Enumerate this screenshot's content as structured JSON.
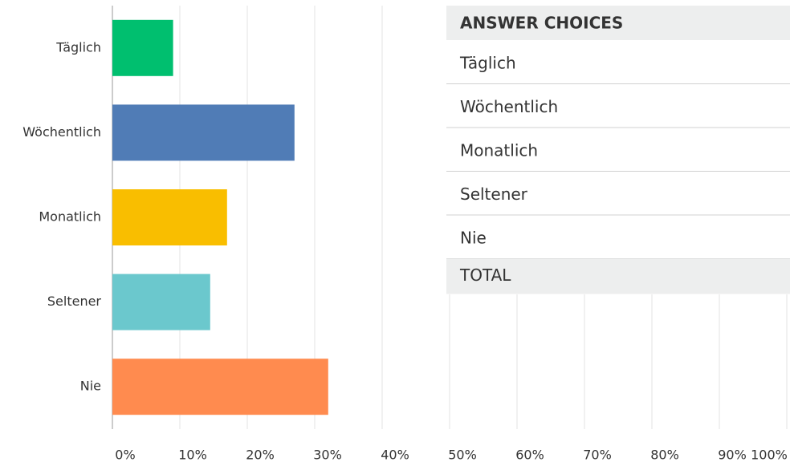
{
  "chart_data": {
    "type": "bar",
    "orientation": "horizontal",
    "categories": [
      "Täglich",
      "Wöchentlich",
      "Monatlich",
      "Seltener",
      "Nie"
    ],
    "values": [
      9,
      27,
      17,
      14.5,
      32
    ],
    "colors": [
      "#00bf6f",
      "#507cb6",
      "#f9be00",
      "#6bc8cd",
      "#ff8b4f"
    ],
    "xlim": [
      0,
      100
    ],
    "xticks": [
      {
        "value": 0,
        "label": "0%"
      },
      {
        "value": 10,
        "label": "10%"
      },
      {
        "value": 20,
        "label": "20%"
      },
      {
        "value": 30,
        "label": "30%"
      },
      {
        "value": 40,
        "label": "40%"
      },
      {
        "value": 50,
        "label": "50%"
      },
      {
        "value": 60,
        "label": "60%"
      },
      {
        "value": 70,
        "label": "70%"
      },
      {
        "value": 80,
        "label": "80%"
      },
      {
        "value": 90,
        "label": "90%"
      },
      {
        "value": 100,
        "label": "100%"
      }
    ],
    "grid": true,
    "table": {
      "header": "ANSWER CHOICES",
      "total": "TOTAL"
    }
  }
}
